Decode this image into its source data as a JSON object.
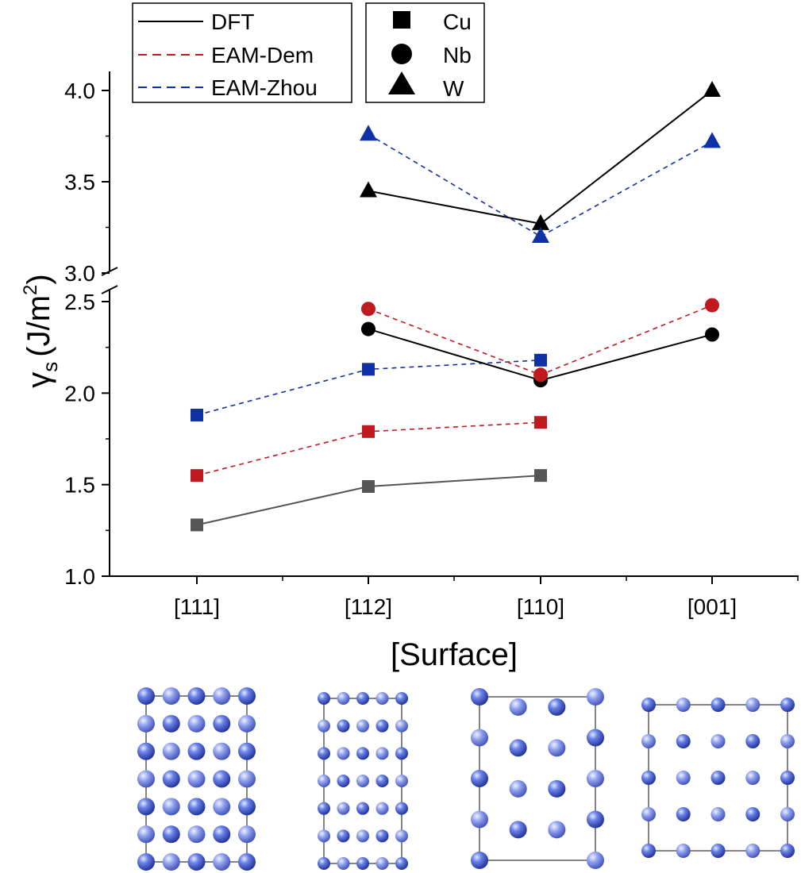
{
  "chart_data": {
    "type": "line",
    "title": "",
    "xlabel": "[Surface]",
    "ylabel": {
      "base": "γ",
      "sub": "s",
      "unit": "(J/m",
      "sup": "2",
      "close": ")"
    },
    "categories": [
      "[111]",
      "[112]",
      "[110]",
      "[001]"
    ],
    "y_axis_break": {
      "lower_range": [
        1.0,
        2.5
      ],
      "upper_range": [
        3.0,
        4.0
      ]
    },
    "yticks_lower": [
      "1.0",
      "1.5",
      "2.0",
      "2.5"
    ],
    "yticks_upper": [
      "3.0",
      "3.5",
      "4.0"
    ],
    "methods_legend": [
      {
        "name": "DFT",
        "color": "#000000",
        "dash": "solid"
      },
      {
        "name": "EAM-Dem",
        "color": "#c0191f",
        "dash": "dashed"
      },
      {
        "name": "EAM-Zhou",
        "color": "#1030a8",
        "dash": "dashed"
      }
    ],
    "elements_legend": [
      {
        "name": "Cu",
        "marker": "square"
      },
      {
        "name": "Nb",
        "marker": "circle"
      },
      {
        "name": "W",
        "marker": "triangle"
      }
    ],
    "series": [
      {
        "name": "Cu DFT",
        "element": "Cu",
        "method": "DFT",
        "marker": "square",
        "color": "#555555",
        "dash": "solid",
        "values": [
          1.28,
          1.49,
          1.55,
          null
        ]
      },
      {
        "name": "Cu EAM-Dem",
        "element": "Cu",
        "method": "EAM-Dem",
        "marker": "square",
        "color": "#c0191f",
        "dash": "dashed",
        "values": [
          1.55,
          1.79,
          1.84,
          null
        ]
      },
      {
        "name": "Cu EAM-Zhou",
        "element": "Cu",
        "method": "EAM-Zhou",
        "marker": "square",
        "color": "#1030a8",
        "dash": "dashed",
        "values": [
          1.88,
          2.13,
          2.18,
          null
        ]
      },
      {
        "name": "Nb DFT",
        "element": "Nb",
        "method": "DFT",
        "marker": "circle",
        "color": "#000000",
        "dash": "solid",
        "values": [
          null,
          2.35,
          2.07,
          2.32
        ]
      },
      {
        "name": "Nb EAM-Dem",
        "element": "Nb",
        "method": "EAM-Dem",
        "marker": "circle",
        "color": "#c0191f",
        "dash": "dashed",
        "values": [
          null,
          2.46,
          2.1,
          2.48
        ]
      },
      {
        "name": "W DFT",
        "element": "W",
        "method": "DFT",
        "marker": "triangle",
        "color": "#000000",
        "dash": "solid",
        "values": [
          null,
          3.45,
          3.27,
          4.0
        ]
      },
      {
        "name": "W EAM-Zhou",
        "element": "W",
        "method": "EAM-Zhou",
        "marker": "triangle",
        "color": "#1030a8",
        "dash": "dashed",
        "values": [
          null,
          3.76,
          3.2,
          3.72
        ]
      }
    ],
    "structure_panels": [
      {
        "surface": "[111]",
        "cols": 5,
        "rows": 7
      },
      {
        "surface": "[112]",
        "cols": 5,
        "rows": 7
      },
      {
        "surface": "[110]",
        "cols": 4,
        "rows": 5
      },
      {
        "surface": "[001]",
        "cols": 5,
        "rows": 5
      }
    ]
  }
}
